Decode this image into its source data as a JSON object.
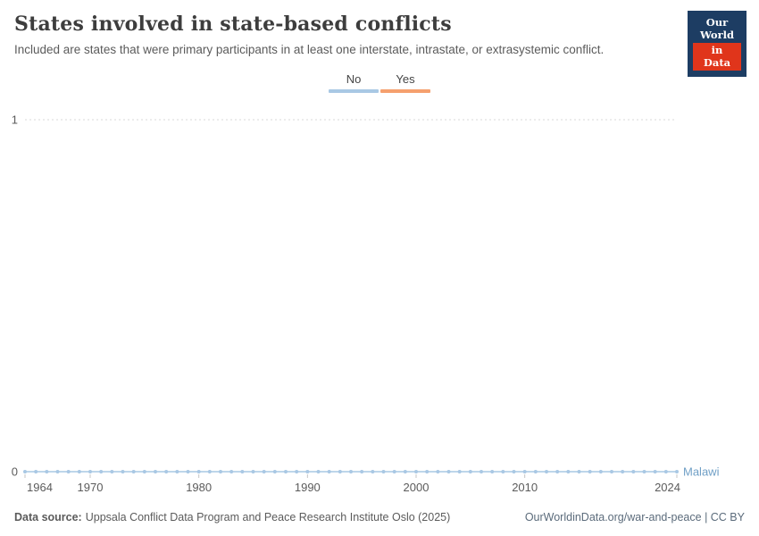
{
  "header": {
    "title": "States involved in state-based conflicts",
    "subtitle": "Included are states that were primary participants in at least one interstate, intrastate, or extrasystemic conflict.",
    "logo": {
      "line1": "Our World",
      "line2": "in Data",
      "bg_color": "#1d3d63",
      "accent_color": "#e0351b"
    }
  },
  "legend": {
    "items": [
      {
        "label": "No",
        "color": "#a9c8e4"
      },
      {
        "label": "Yes",
        "color": "#f5a06e"
      }
    ]
  },
  "chart_data": {
    "type": "line",
    "title": "States involved in state-based conflicts",
    "subtitle": "Included are states that were primary participants in at least one interstate, intrastate, or extrasystemic conflict.",
    "x_range": [
      1964,
      2024
    ],
    "x_ticks": [
      1964,
      1970,
      1980,
      1990,
      2000,
      2010,
      2024
    ],
    "ylim": [
      0,
      1
    ],
    "y_ticks": [
      0,
      1
    ],
    "grid": "dashed-horizontal",
    "legend_position": "top-center",
    "legend_entries": [
      "No",
      "Yes"
    ],
    "series": [
      {
        "name": "Malawi",
        "category": "No",
        "color": "#a9c8e4",
        "label_color": "#6f9fc6",
        "x_start": 1964,
        "x_end": 2024,
        "x_step": 1,
        "y_constant": 0
      }
    ]
  },
  "footer": {
    "source_label": "Data source:",
    "source_text": "Uppsala Conflict Data Program and Peace Research Institute Oslo (2025)",
    "link_text": "OurWorldinData.org/war-and-peace | CC BY"
  }
}
